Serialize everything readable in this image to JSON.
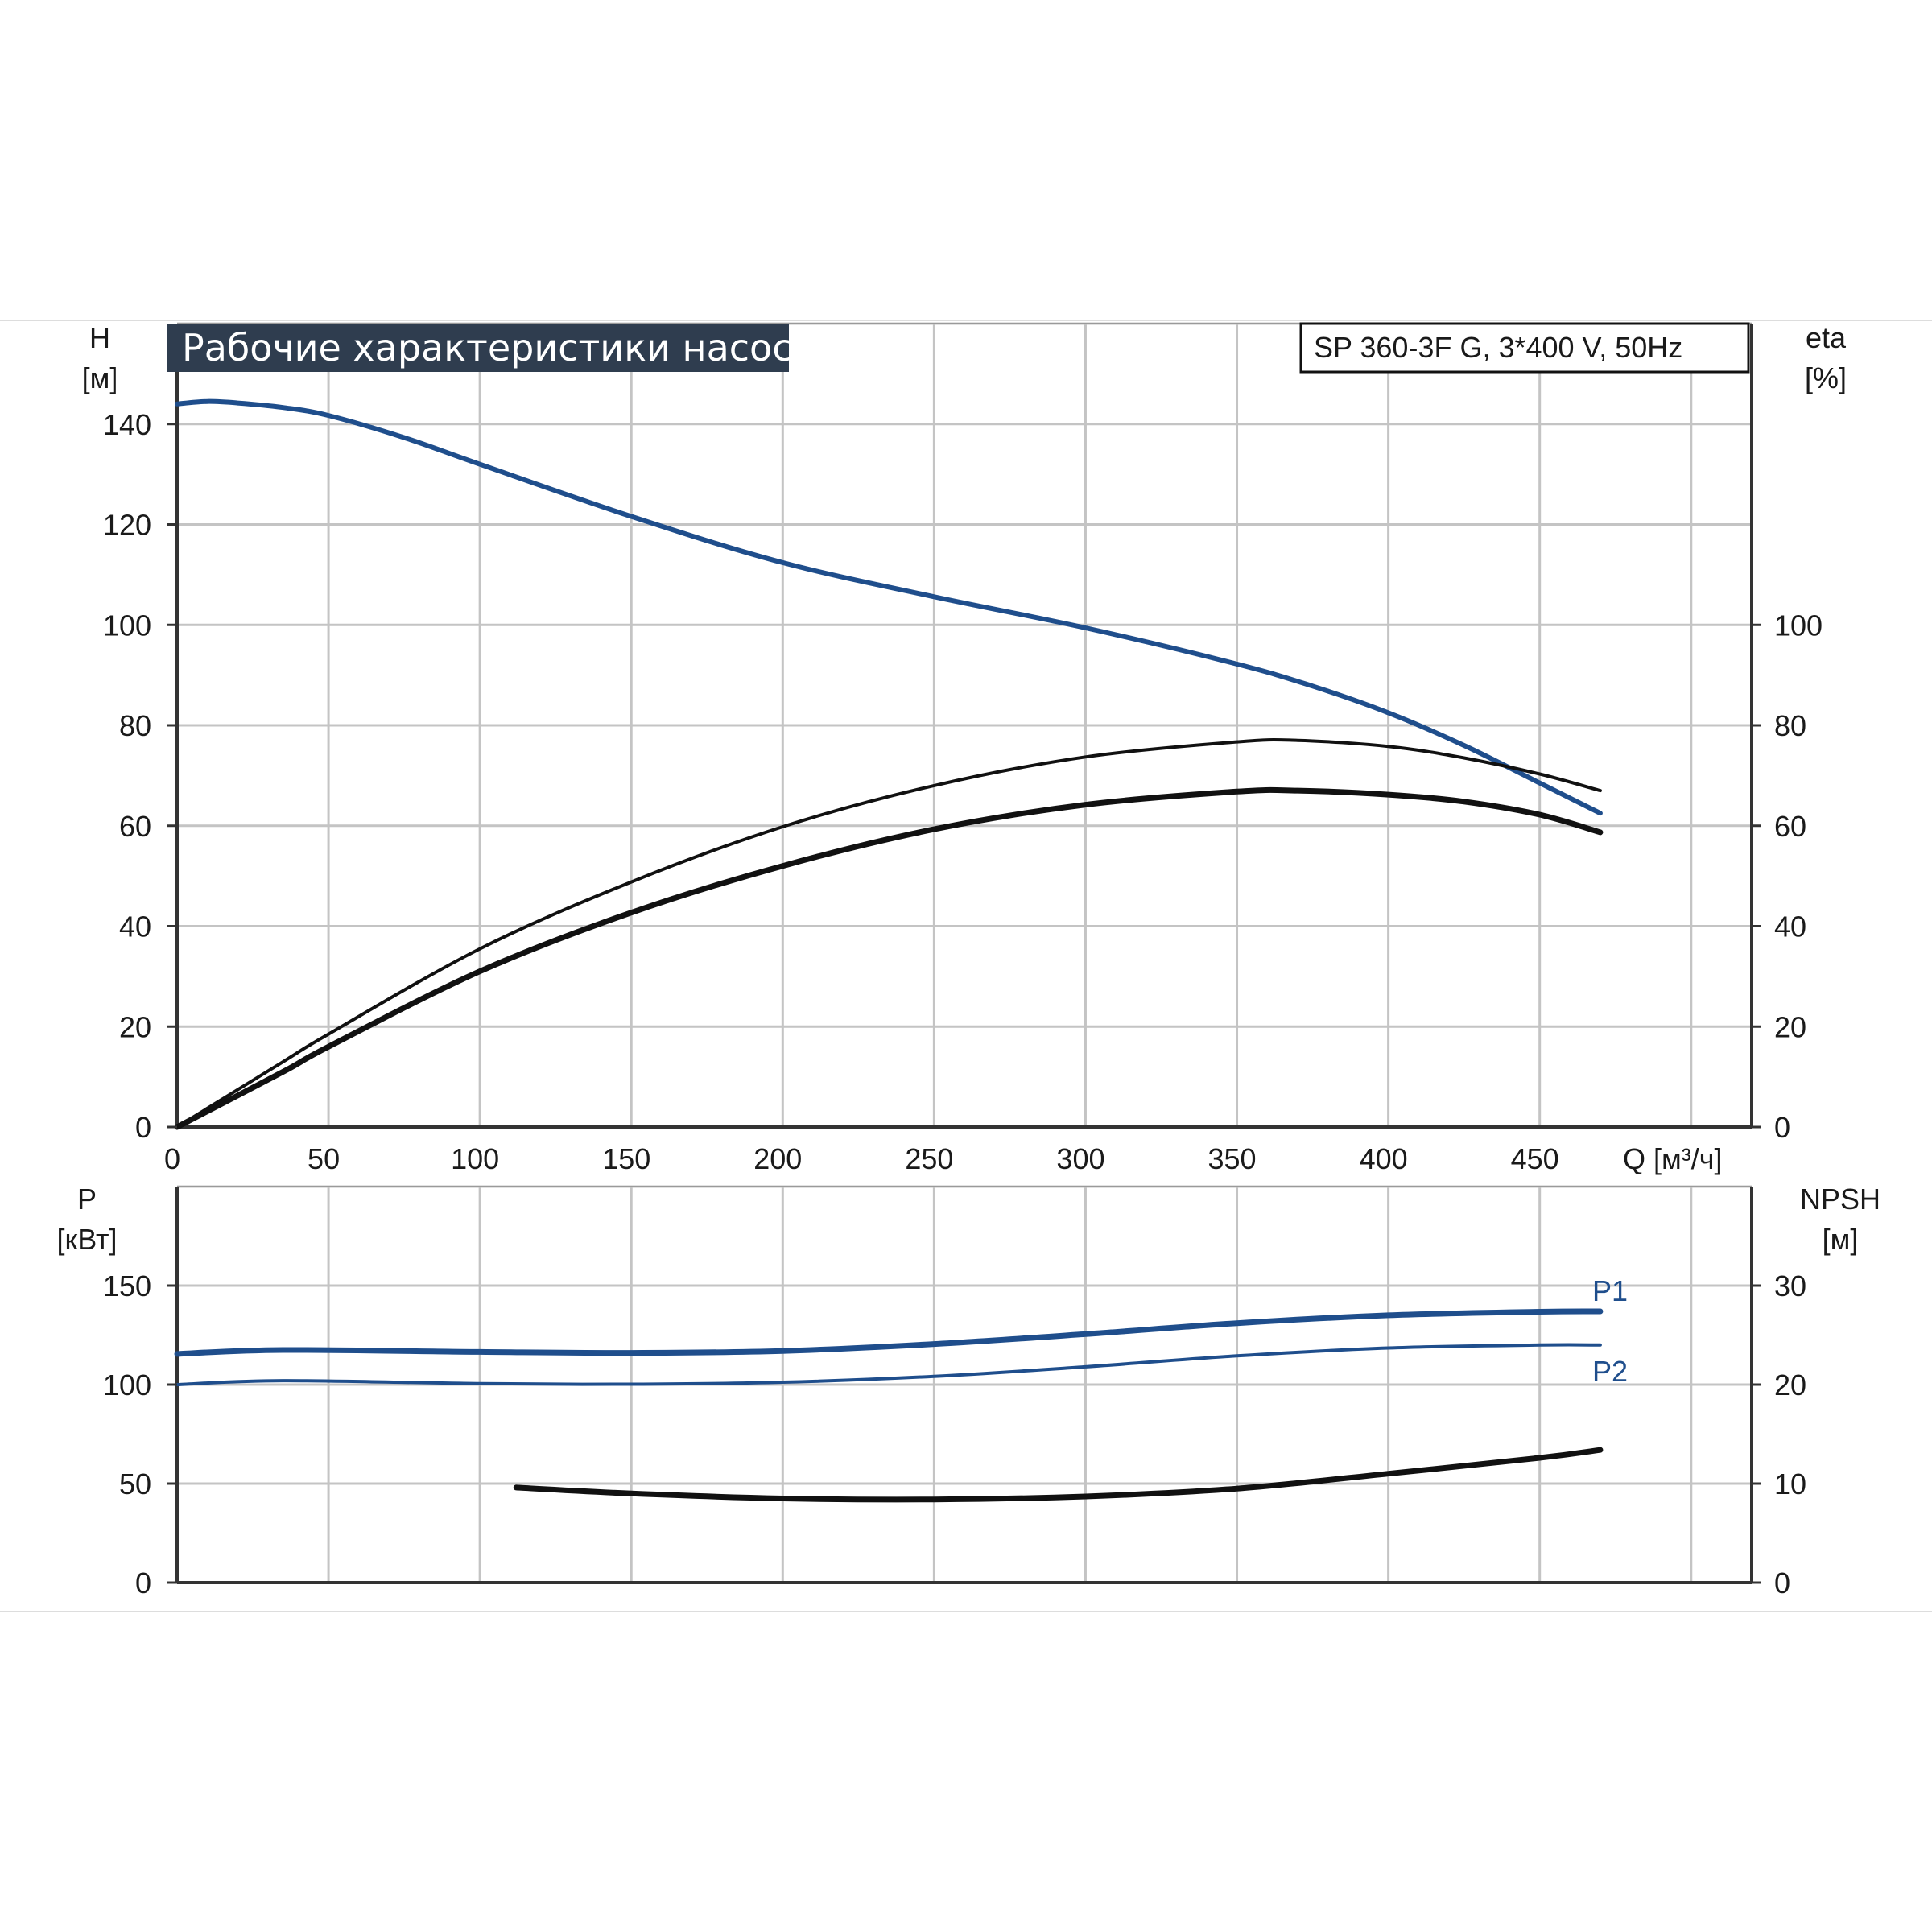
{
  "title": "Рабочие характеристики насоса",
  "model_label": "SP 360-3F G, 3*400 V, 50Hz",
  "colors": {
    "blue": "#1f4e8c",
    "black": "#111111",
    "grid": "#c4c4c4",
    "title_bg": "#2f3d4f"
  },
  "chart_data": [
    {
      "type": "line",
      "panel": "top",
      "xlabel": "Q [м³/ч]",
      "ylabel_left": "H\n[м]",
      "ylabel_right": "eta\n[%]",
      "xlim": [
        0,
        520
      ],
      "ylim_left": [
        0,
        160
      ],
      "ylim_right": [
        0,
        160
      ],
      "x_ticks": [
        0,
        50,
        100,
        150,
        200,
        250,
        300,
        350,
        400,
        450
      ],
      "y_ticks_left": [
        0,
        20,
        40,
        60,
        80,
        100,
        120,
        140
      ],
      "y_ticks_right": [
        0,
        20,
        40,
        60,
        80,
        100
      ],
      "grid": true,
      "series": [
        {
          "axis": "left",
          "color": "#1f4e8c",
          "x": [
            0,
            10,
            20,
            35,
            50,
            75,
            100,
            150,
            200,
            250,
            300,
            350,
            375,
            400,
            425,
            450,
            470
          ],
          "y": [
            144,
            144.5,
            144.2,
            143.3,
            141.7,
            137.3,
            132,
            121.6,
            112.4,
            105.6,
            99.4,
            92.2,
            87.8,
            82.5,
            76,
            68.5,
            62.5
          ]
        },
        {
          "axis": "right",
          "color": "#111111",
          "x": [
            0,
            35,
            50,
            100,
            150,
            200,
            250,
            300,
            350,
            370,
            400,
            425,
            450,
            470
          ],
          "y": [
            0,
            13,
            18.5,
            35.5,
            48.8,
            59.8,
            68,
            73.7,
            76.7,
            77,
            75.8,
            73.5,
            70.3,
            67
          ]
        },
        {
          "axis": "right",
          "color": "#111111",
          "x": [
            0,
            35,
            50,
            100,
            150,
            200,
            250,
            300,
            350,
            370,
            400,
            425,
            450,
            470
          ],
          "y": [
            0,
            11,
            16,
            31,
            42.7,
            52,
            59.3,
            64.2,
            66.8,
            67,
            66.2,
            64.8,
            62.2,
            58.7
          ]
        }
      ]
    },
    {
      "type": "line",
      "panel": "bottom",
      "ylabel_left": "P\n[кВт]",
      "ylabel_right": "NPSH\n[м]",
      "xlim": [
        0,
        520
      ],
      "ylim_left": [
        0,
        200
      ],
      "ylim_right": [
        0,
        40
      ],
      "y_ticks_left": [
        0,
        50,
        100,
        150
      ],
      "y_ticks_right": [
        0,
        10,
        20,
        30
      ],
      "grid": true,
      "series": [
        {
          "name": "P1",
          "axis": "left",
          "color": "#1f4e8c",
          "x": [
            0,
            35,
            100,
            150,
            200,
            250,
            300,
            350,
            400,
            450,
            470
          ],
          "y": [
            115.5,
            117.5,
            116.5,
            116,
            117,
            120.5,
            125.5,
            131,
            135,
            136.8,
            137
          ]
        },
        {
          "name": "P2",
          "axis": "left",
          "color": "#1f4e8c",
          "x": [
            0,
            35,
            100,
            150,
            200,
            250,
            300,
            350,
            400,
            450,
            470
          ],
          "y": [
            100,
            102,
            100.5,
            100.2,
            101.2,
            104.2,
            109,
            114.5,
            118.5,
            120,
            120
          ]
        },
        {
          "axis": "right",
          "color": "#111111",
          "x": [
            112,
            150,
            200,
            250,
            300,
            350,
            400,
            450,
            470
          ],
          "y": [
            9.6,
            9,
            8.5,
            8.4,
            8.7,
            9.5,
            11,
            12.6,
            13.4
          ]
        }
      ]
    }
  ]
}
